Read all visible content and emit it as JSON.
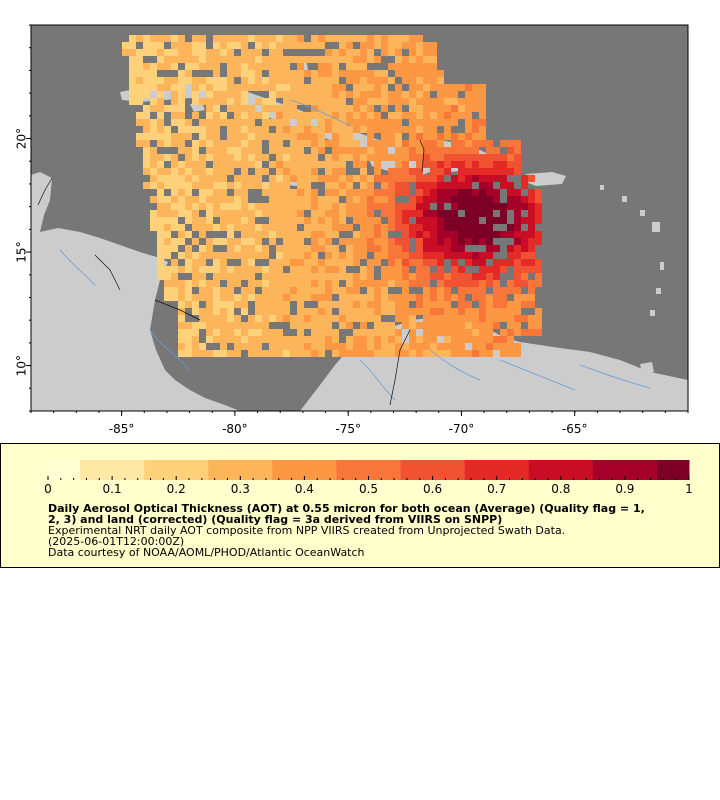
{
  "map": {
    "colors": {
      "ocean": "#777777",
      "land": "#cccccc",
      "rivers": "#6a9ed6",
      "borders": "#111111",
      "frame": "#000000"
    },
    "lon_ticks": [
      "-85°",
      "-80°",
      "-75°",
      "-70°",
      "-65°"
    ],
    "lat_ticks": [
      "20°",
      "15°",
      "10°"
    ],
    "lon_range": [
      -89,
      -60
    ],
    "lat_range": [
      8,
      25
    ]
  },
  "legend": {
    "ticks": [
      "0",
      "0.1",
      "0.2",
      "0.3",
      "0.4",
      "0.5",
      "0.6",
      "0.7",
      "0.8",
      "0.9",
      "1"
    ],
    "range": [
      0,
      1
    ],
    "palette": [
      "#ffffd4",
      "#fee8a5",
      "#fed17a",
      "#fdb55b",
      "#fc9744",
      "#f8763a",
      "#f15332",
      "#e32a27",
      "#c80d25",
      "#a4002a",
      "#7c0026"
    ]
  },
  "caption": {
    "title_line1": "Daily Aerosol Optical Thickness (AOT) at 0.55 micron for both ocean (Average) (Quality flag = 1,",
    "title_line2": "2, 3) and land (corrected) (Quality flag = 3a derived from VIIRS on SNPP)",
    "summary": "Experimental NRT daily AOT composite from NPP VIIRS created from Unprojected Swath Data.",
    "time": "(2025-06-01T12:00:00Z)",
    "credit": "Data courtesy of NOAA/AOML/PHOD/Atlantic OceanWatch"
  }
}
